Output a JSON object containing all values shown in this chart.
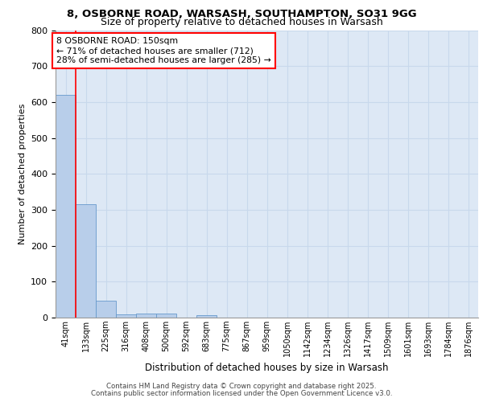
{
  "title1": "8, OSBORNE ROAD, WARSASH, SOUTHAMPTON, SO31 9GG",
  "title2": "Size of property relative to detached houses in Warsash",
  "xlabel": "Distribution of detached houses by size in Warsash",
  "ylabel": "Number of detached properties",
  "bin_labels": [
    "41sqm",
    "133sqm",
    "225sqm",
    "316sqm",
    "408sqm",
    "500sqm",
    "592sqm",
    "683sqm",
    "775sqm",
    "867sqm",
    "959sqm",
    "1050sqm",
    "1142sqm",
    "1234sqm",
    "1326sqm",
    "1417sqm",
    "1509sqm",
    "1601sqm",
    "1693sqm",
    "1784sqm",
    "1876sqm"
  ],
  "bar_values": [
    620,
    315,
    48,
    10,
    12,
    12,
    0,
    7,
    0,
    0,
    0,
    0,
    0,
    0,
    0,
    0,
    0,
    0,
    0,
    0,
    0
  ],
  "bar_color": "#b8ceea",
  "bar_edge_color": "#6699cc",
  "grid_color": "#c8d8ec",
  "background_color": "#dde8f5",
  "red_line_x": 1,
  "annotation_text": "8 OSBORNE ROAD: 150sqm\n← 71% of detached houses are smaller (712)\n28% of semi-detached houses are larger (285) →",
  "ylim": [
    0,
    800
  ],
  "yticks": [
    0,
    100,
    200,
    300,
    400,
    500,
    600,
    700,
    800
  ],
  "footer1": "Contains HM Land Registry data © Crown copyright and database right 2025.",
  "footer2": "Contains public sector information licensed under the Open Government Licence v3.0."
}
